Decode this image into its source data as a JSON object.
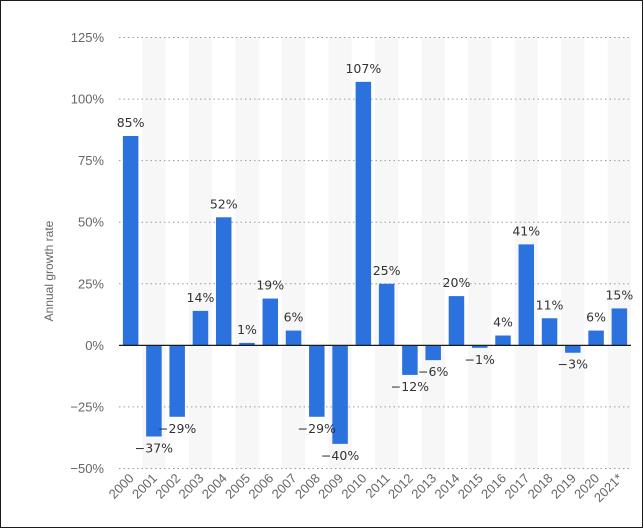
{
  "chart_data": {
    "type": "bar",
    "ylabel": "Annual growth rate",
    "xlabel": "",
    "title": "",
    "ylim": [
      -50,
      125
    ],
    "yticks": [
      125,
      100,
      75,
      50,
      25,
      0,
      -25,
      -50
    ],
    "ytick_labels": [
      "125%",
      "100%",
      "75%",
      "50%",
      "25%",
      "0%",
      "−25%",
      "−50%"
    ],
    "grid": true,
    "bar_color": "#2b72de",
    "categories": [
      "2000",
      "2001",
      "2002",
      "2003",
      "2004",
      "2005",
      "2006",
      "2007",
      "2008",
      "2009",
      "2010",
      "2011",
      "2012",
      "2013",
      "2014",
      "2015",
      "2016",
      "2017",
      "2018",
      "2019",
      "2020",
      "2021*"
    ],
    "values": [
      85,
      -37,
      -29,
      14,
      52,
      1,
      19,
      6,
      -29,
      -40,
      107,
      25,
      -12,
      -6,
      20,
      -1,
      4,
      41,
      11,
      -3,
      6,
      15
    ],
    "data_labels": [
      "85%",
      "−37%",
      "−29%",
      "14%",
      "52%",
      "1%",
      "19%",
      "6%",
      "−29%",
      "−40%",
      "107%",
      "25%",
      "−12%",
      "−6%",
      "20%",
      "−1%",
      "4%",
      "41%",
      "11%",
      "−3%",
      "6%",
      "15%"
    ]
  }
}
